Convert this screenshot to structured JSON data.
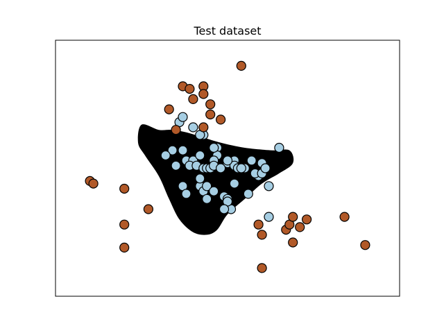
{
  "chart_data": {
    "type": "scatter",
    "title": "Test dataset",
    "xlabel": "",
    "ylabel": "",
    "grid": false,
    "ticks": false,
    "legend": "none",
    "xlim": [
      0,
      10
    ],
    "ylim": [
      0,
      10
    ],
    "decision_region": {
      "color": "#000000",
      "boundary": [
        [
          2.6,
          5.5
        ],
        [
          2.4,
          6.0
        ],
        [
          2.5,
          6.7
        ],
        [
          3.0,
          6.5
        ],
        [
          3.4,
          6.5
        ],
        [
          3.8,
          6.4
        ],
        [
          4.3,
          6.2
        ],
        [
          4.8,
          6.0
        ],
        [
          5.5,
          5.8
        ],
        [
          6.3,
          5.7
        ],
        [
          6.8,
          5.7
        ],
        [
          6.9,
          5.2
        ],
        [
          6.5,
          4.8
        ],
        [
          6.0,
          4.4
        ],
        [
          5.5,
          3.8
        ],
        [
          5.0,
          3.2
        ],
        [
          4.7,
          2.6
        ],
        [
          4.4,
          2.4
        ],
        [
          4.0,
          2.5
        ],
        [
          3.6,
          3.0
        ],
        [
          3.3,
          3.8
        ],
        [
          3.0,
          4.7
        ]
      ]
    },
    "series": [
      {
        "class": 0,
        "color": "#a6cee3",
        "x": [
          3.6,
          3.7,
          4.0,
          4.3,
          4.7,
          4.7,
          5.2,
          5.5,
          5.9,
          6.2,
          3.4,
          3.7,
          3.8,
          4.0,
          4.2,
          4.6,
          5.0,
          5.2,
          5.5,
          5.7,
          5.8,
          6.0,
          3.2,
          3.5,
          3.9,
          4.1,
          4.3,
          4.4,
          4.5,
          4.6,
          4.8,
          5.0,
          5.3,
          5.4,
          6.0,
          6.1,
          6.5,
          3.7,
          3.8,
          4.2,
          4.3,
          4.4,
          4.6,
          4.9,
          5.1,
          5.0,
          4.2,
          4.4,
          5.2,
          5.0,
          5.6,
          4.6,
          6.2,
          4.9,
          4.2
        ],
        "y": [
          6.8,
          7.0,
          6.6,
          6.3,
          5.8,
          5.5,
          5.3,
          5.0,
          4.7,
          4.3,
          5.7,
          5.7,
          5.3,
          5.3,
          5.5,
          5.3,
          5.2,
          5.1,
          5.0,
          5.3,
          4.8,
          4.8,
          5.5,
          5.1,
          5.1,
          5.1,
          5.0,
          5.0,
          5.0,
          5.1,
          5.0,
          5.3,
          5.0,
          5.0,
          5.2,
          5.0,
          5.8,
          4.3,
          4.0,
          4.3,
          4.1,
          4.3,
          4.1,
          3.9,
          3.4,
          3.8,
          4.6,
          3.8,
          4.4,
          3.7,
          4.0,
          5.8,
          3.1,
          3.4,
          6.3
        ]
      },
      {
        "class": 1,
        "color": "#b15928",
        "x": [
          5.4,
          3.7,
          3.9,
          4.0,
          4.3,
          4.3,
          4.5,
          3.3,
          4.5,
          4.3,
          4.8,
          3.5,
          1.0,
          1.1,
          2.0,
          2.7,
          2.0,
          2.0,
          6.0,
          5.9,
          6.0,
          6.9,
          6.7,
          6.8,
          7.1,
          6.9,
          7.3,
          8.4,
          9.0
        ],
        "y": [
          9.0,
          8.2,
          8.1,
          7.7,
          8.2,
          7.9,
          7.5,
          7.3,
          7.1,
          6.6,
          6.9,
          6.5,
          4.5,
          4.4,
          4.2,
          3.4,
          2.8,
          1.9,
          1.1,
          2.8,
          2.4,
          2.1,
          2.6,
          2.8,
          2.7,
          3.1,
          3.0,
          3.1,
          2.0
        ]
      }
    ]
  }
}
